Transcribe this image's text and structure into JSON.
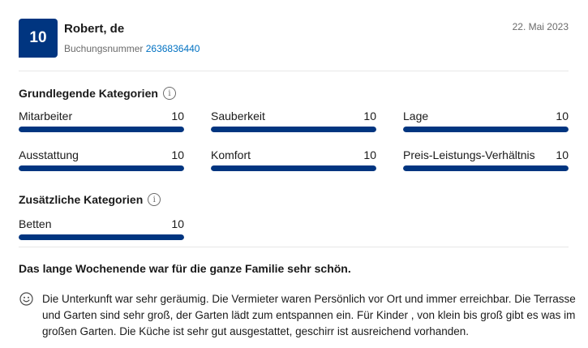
{
  "review": {
    "score": "10",
    "reviewer": "Robert, de",
    "booking_label": "Buchungsnummer",
    "booking_number": "2636836440",
    "date": "22. Mai 2023",
    "title": "Das lange Wochenende war für die ganze Familie sehr schön.",
    "text": "Die Unterkunft war sehr geräumig. Die Vermieter waren Persönlich vor Ort und immer erreichbar. Die Terrasse und Garten sind sehr groß, der Garten lädt zum entspannen ein. Für Kinder , von klein bis groß gibt es was im großen Garten. Die Küche ist sehr gut ausgestattet, geschirr ist ausreichend vorhanden."
  },
  "basic_categories": {
    "title": "Grundlegende Kategorien",
    "items": [
      {
        "label": "Mitarbeiter",
        "score": "10",
        "fill": 1.0
      },
      {
        "label": "Sauberkeit",
        "score": "10",
        "fill": 1.0
      },
      {
        "label": "Lage",
        "score": "10",
        "fill": 1.0
      },
      {
        "label": "Ausstattung",
        "score": "10",
        "fill": 1.0
      },
      {
        "label": "Komfort",
        "score": "10",
        "fill": 1.0
      },
      {
        "label": "Preis-Leistungs-Verhältnis",
        "score": "10",
        "fill": 1.0
      }
    ]
  },
  "extra_categories": {
    "title": "Zusätzliche Kategorien",
    "items": [
      {
        "label": "Betten",
        "score": "10",
        "fill": 1.0
      }
    ]
  },
  "colors": {
    "brand": "#003580",
    "link": "#0071c2",
    "track": "#e7e7e7"
  },
  "icons": {
    "info": "info-icon",
    "smiley": "smiley-icon"
  }
}
